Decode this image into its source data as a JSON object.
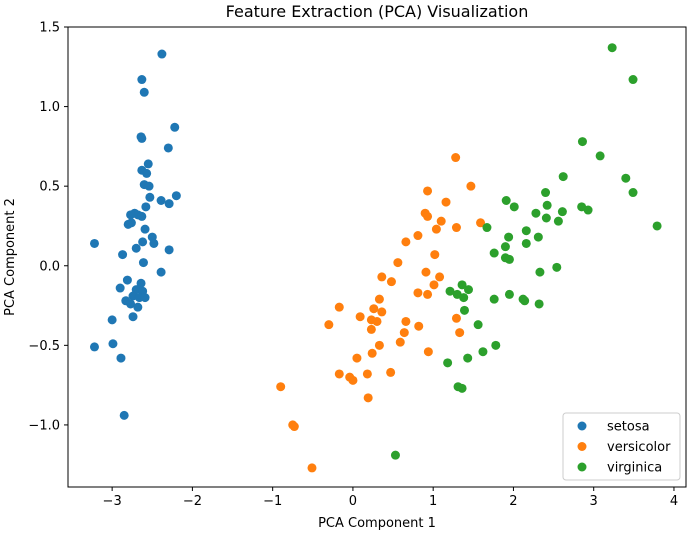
{
  "chart_data": {
    "type": "scatter",
    "title": "Feature Extraction (PCA) Visualization",
    "xlabel": "PCA Component 1",
    "ylabel": "PCA Component 2",
    "xlim": [
      -3.55,
      4.15
    ],
    "ylim": [
      -1.39,
      1.5
    ],
    "xticks": [
      -3,
      -2,
      -1,
      0,
      1,
      2,
      3,
      4
    ],
    "xtick_labels": [
      "−3",
      "−2",
      "−1",
      "0",
      "1",
      "2",
      "3",
      "4"
    ],
    "yticks": [
      -1.0,
      -0.5,
      0.0,
      0.5,
      1.0,
      1.5
    ],
    "ytick_labels": [
      "−1.0",
      "−0.5",
      "0.0",
      "0.5",
      "1.0",
      "1.5"
    ],
    "grid": false,
    "legend_position": "lower-right",
    "series": [
      {
        "name": "setosa",
        "color": "#1f77b4",
        "points": [
          [
            -2.38,
            1.33
          ],
          [
            -2.63,
            1.17
          ],
          [
            -2.6,
            1.09
          ],
          [
            -2.22,
            0.87
          ],
          [
            -2.64,
            0.81
          ],
          [
            -2.63,
            0.8
          ],
          [
            -2.3,
            0.74
          ],
          [
            -2.55,
            0.64
          ],
          [
            -2.63,
            0.6
          ],
          [
            -2.57,
            0.58
          ],
          [
            -2.6,
            0.51
          ],
          [
            -2.54,
            0.5
          ],
          [
            -2.2,
            0.44
          ],
          [
            -2.39,
            0.41
          ],
          [
            -2.29,
            0.39
          ],
          [
            -2.53,
            0.43
          ],
          [
            -2.58,
            0.37
          ],
          [
            -2.72,
            0.33
          ],
          [
            -2.68,
            0.32
          ],
          [
            -2.77,
            0.32
          ],
          [
            -2.63,
            0.31
          ],
          [
            -2.76,
            0.27
          ],
          [
            -2.8,
            0.26
          ],
          [
            -2.59,
            0.23
          ],
          [
            -3.22,
            0.14
          ],
          [
            -2.5,
            0.18
          ],
          [
            -2.62,
            0.15
          ],
          [
            -2.7,
            0.11
          ],
          [
            -2.29,
            0.1
          ],
          [
            -2.48,
            0.14
          ],
          [
            -2.87,
            0.07
          ],
          [
            -2.61,
            0.02
          ],
          [
            -2.39,
            -0.04
          ],
          [
            -2.81,
            -0.09
          ],
          [
            -2.64,
            -0.11
          ],
          [
            -2.9,
            -0.14
          ],
          [
            -2.7,
            -0.15
          ],
          [
            -2.62,
            -0.16
          ],
          [
            -2.74,
            -0.19
          ],
          [
            -2.66,
            -0.2
          ],
          [
            -2.59,
            -0.2
          ],
          [
            -2.83,
            -0.22
          ],
          [
            -2.77,
            -0.24
          ],
          [
            -2.68,
            -0.26
          ],
          [
            -2.74,
            -0.32
          ],
          [
            -3.0,
            -0.34
          ],
          [
            -2.99,
            -0.49
          ],
          [
            -3.22,
            -0.51
          ],
          [
            -2.89,
            -0.58
          ],
          [
            -2.85,
            -0.94
          ]
        ]
      },
      {
        "name": "versicolor",
        "color": "#ff7f0e",
        "points": [
          [
            1.28,
            0.68
          ],
          [
            1.47,
            0.5
          ],
          [
            0.93,
            0.47
          ],
          [
            1.16,
            0.4
          ],
          [
            0.9,
            0.33
          ],
          [
            0.93,
            0.31
          ],
          [
            1.59,
            0.27
          ],
          [
            1.1,
            0.28
          ],
          [
            1.29,
            0.24
          ],
          [
            1.04,
            0.23
          ],
          [
            0.81,
            0.19
          ],
          [
            0.66,
            0.15
          ],
          [
            1.02,
            0.07
          ],
          [
            0.56,
            0.02
          ],
          [
            0.36,
            -0.07
          ],
          [
            0.91,
            -0.04
          ],
          [
            1.08,
            -0.07
          ],
          [
            0.48,
            -0.1
          ],
          [
            1.01,
            -0.12
          ],
          [
            0.81,
            -0.17
          ],
          [
            0.93,
            -0.18
          ],
          [
            0.33,
            -0.21
          ],
          [
            -0.17,
            -0.26
          ],
          [
            0.26,
            -0.27
          ],
          [
            0.36,
            -0.29
          ],
          [
            1.29,
            -0.33
          ],
          [
            0.09,
            -0.32
          ],
          [
            0.23,
            -0.34
          ],
          [
            0.3,
            -0.35
          ],
          [
            0.66,
            -0.35
          ],
          [
            -0.3,
            -0.37
          ],
          [
            0.82,
            -0.38
          ],
          [
            0.23,
            -0.4
          ],
          [
            0.64,
            -0.42
          ],
          [
            1.33,
            -0.42
          ],
          [
            0.59,
            -0.48
          ],
          [
            0.33,
            -0.5
          ],
          [
            0.94,
            -0.54
          ],
          [
            0.24,
            -0.55
          ],
          [
            0.05,
            -0.58
          ],
          [
            0.47,
            -0.67
          ],
          [
            -0.17,
            -0.68
          ],
          [
            0.18,
            -0.68
          ],
          [
            -0.04,
            -0.7
          ],
          [
            0.0,
            -0.72
          ],
          [
            -0.9,
            -0.76
          ],
          [
            0.19,
            -0.83
          ],
          [
            -0.75,
            -1.0
          ],
          [
            -0.73,
            -1.01
          ],
          [
            -0.51,
            -1.27
          ]
        ]
      },
      {
        "name": "virginica",
        "color": "#2ca02c",
        "points": [
          [
            3.23,
            1.37
          ],
          [
            3.49,
            1.17
          ],
          [
            2.86,
            0.78
          ],
          [
            3.08,
            0.69
          ],
          [
            2.62,
            0.56
          ],
          [
            3.4,
            0.55
          ],
          [
            2.4,
            0.46
          ],
          [
            3.49,
            0.46
          ],
          [
            1.91,
            0.41
          ],
          [
            2.42,
            0.38
          ],
          [
            2.01,
            0.37
          ],
          [
            2.85,
            0.37
          ],
          [
            2.93,
            0.35
          ],
          [
            2.61,
            0.34
          ],
          [
            2.28,
            0.33
          ],
          [
            2.41,
            0.3
          ],
          [
            2.56,
            0.28
          ],
          [
            1.67,
            0.24
          ],
          [
            3.79,
            0.25
          ],
          [
            2.16,
            0.22
          ],
          [
            1.94,
            0.18
          ],
          [
            2.31,
            0.18
          ],
          [
            2.16,
            0.14
          ],
          [
            1.9,
            0.12
          ],
          [
            1.76,
            0.08
          ],
          [
            1.9,
            0.05
          ],
          [
            1.95,
            0.04
          ],
          [
            2.54,
            -0.01
          ],
          [
            2.33,
            -0.04
          ],
          [
            1.21,
            -0.16
          ],
          [
            1.36,
            -0.12
          ],
          [
            1.44,
            -0.15
          ],
          [
            1.3,
            -0.18
          ],
          [
            1.95,
            -0.18
          ],
          [
            1.76,
            -0.21
          ],
          [
            2.12,
            -0.21
          ],
          [
            2.14,
            -0.22
          ],
          [
            1.38,
            -0.2
          ],
          [
            2.32,
            -0.24
          ],
          [
            1.39,
            -0.28
          ],
          [
            1.56,
            -0.37
          ],
          [
            1.78,
            -0.5
          ],
          [
            1.62,
            -0.54
          ],
          [
            1.43,
            -0.58
          ],
          [
            1.18,
            -0.61
          ],
          [
            1.31,
            -0.76
          ],
          [
            1.36,
            -0.77
          ],
          [
            0.53,
            -1.19
          ]
        ]
      }
    ]
  }
}
